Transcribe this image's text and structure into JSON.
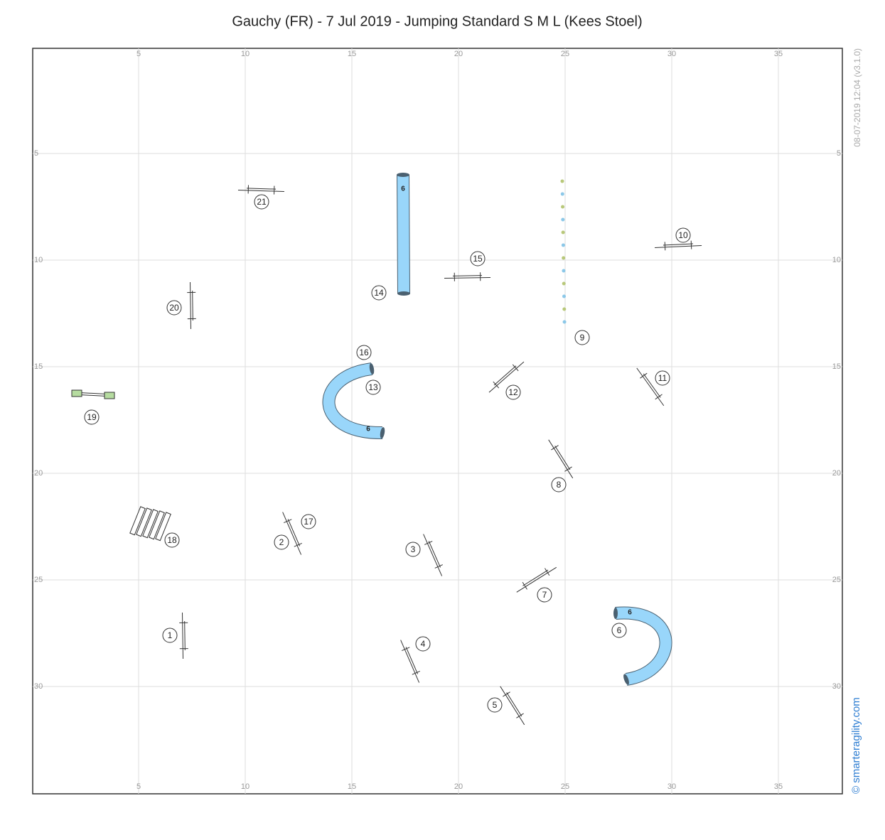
{
  "header": {
    "title": "Gauchy (FR) - 7 Jul 2019 - Jumping Standard S M L (Kees Stoel)"
  },
  "grid": {
    "x_ticks": [
      5,
      10,
      15,
      20,
      25,
      30,
      35
    ],
    "y_ticks": [
      5,
      10,
      15,
      20,
      25,
      30
    ]
  },
  "side": {
    "timestamp": "08-07-2019 12:04  (v3.1.0)",
    "copyright": "© smarteragility.com"
  },
  "obstacles": [
    "1",
    "2",
    "3",
    "4",
    "5",
    "6",
    "7",
    "8",
    "9",
    "10",
    "11",
    "12",
    "13",
    "14",
    "15",
    "16",
    "17",
    "18",
    "19",
    "20",
    "21"
  ],
  "tunnel_labels": [
    "6",
    "6",
    "6"
  ]
}
